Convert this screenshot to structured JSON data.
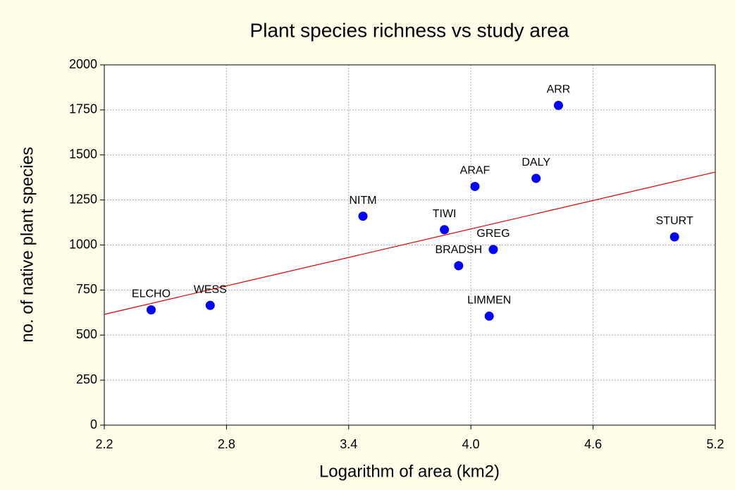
{
  "chart_data": {
    "type": "scatter",
    "title": "Plant species richness vs study area",
    "x_label": "Logarithm of area (km2)",
    "y_label": "no. of native plant species",
    "point_labels": [
      "ELCHO",
      "WESS",
      "NITM",
      "TIWI",
      "ARAF",
      "BRADSH",
      "GREG",
      "LIMMEN",
      "DALY",
      "ARR",
      "STURT"
    ],
    "x": [
      2.43,
      2.72,
      3.47,
      3.87,
      4.02,
      3.94,
      4.11,
      4.09,
      4.32,
      4.43,
      5.0
    ],
    "values": [
      640,
      665,
      1160,
      1085,
      1325,
      885,
      975,
      605,
      1370,
      1775,
      1045
    ],
    "color": "#0000ff",
    "trend": {
      "x": [
        2.2,
        5.2
      ],
      "y": [
        615,
        1405
      ],
      "color": "#e00000"
    },
    "xlim": [
      2.2,
      5.2
    ],
    "xticks": [
      2.2,
      2.8,
      3.4,
      {
        "value": 4,
        "label": "4.0"
      },
      4.6,
      5.2
    ],
    "ylim": [
      0,
      2000
    ],
    "yticks": [
      0,
      250,
      500,
      750,
      1000,
      1250,
      1500,
      1750,
      2000
    ],
    "grid": true
  }
}
